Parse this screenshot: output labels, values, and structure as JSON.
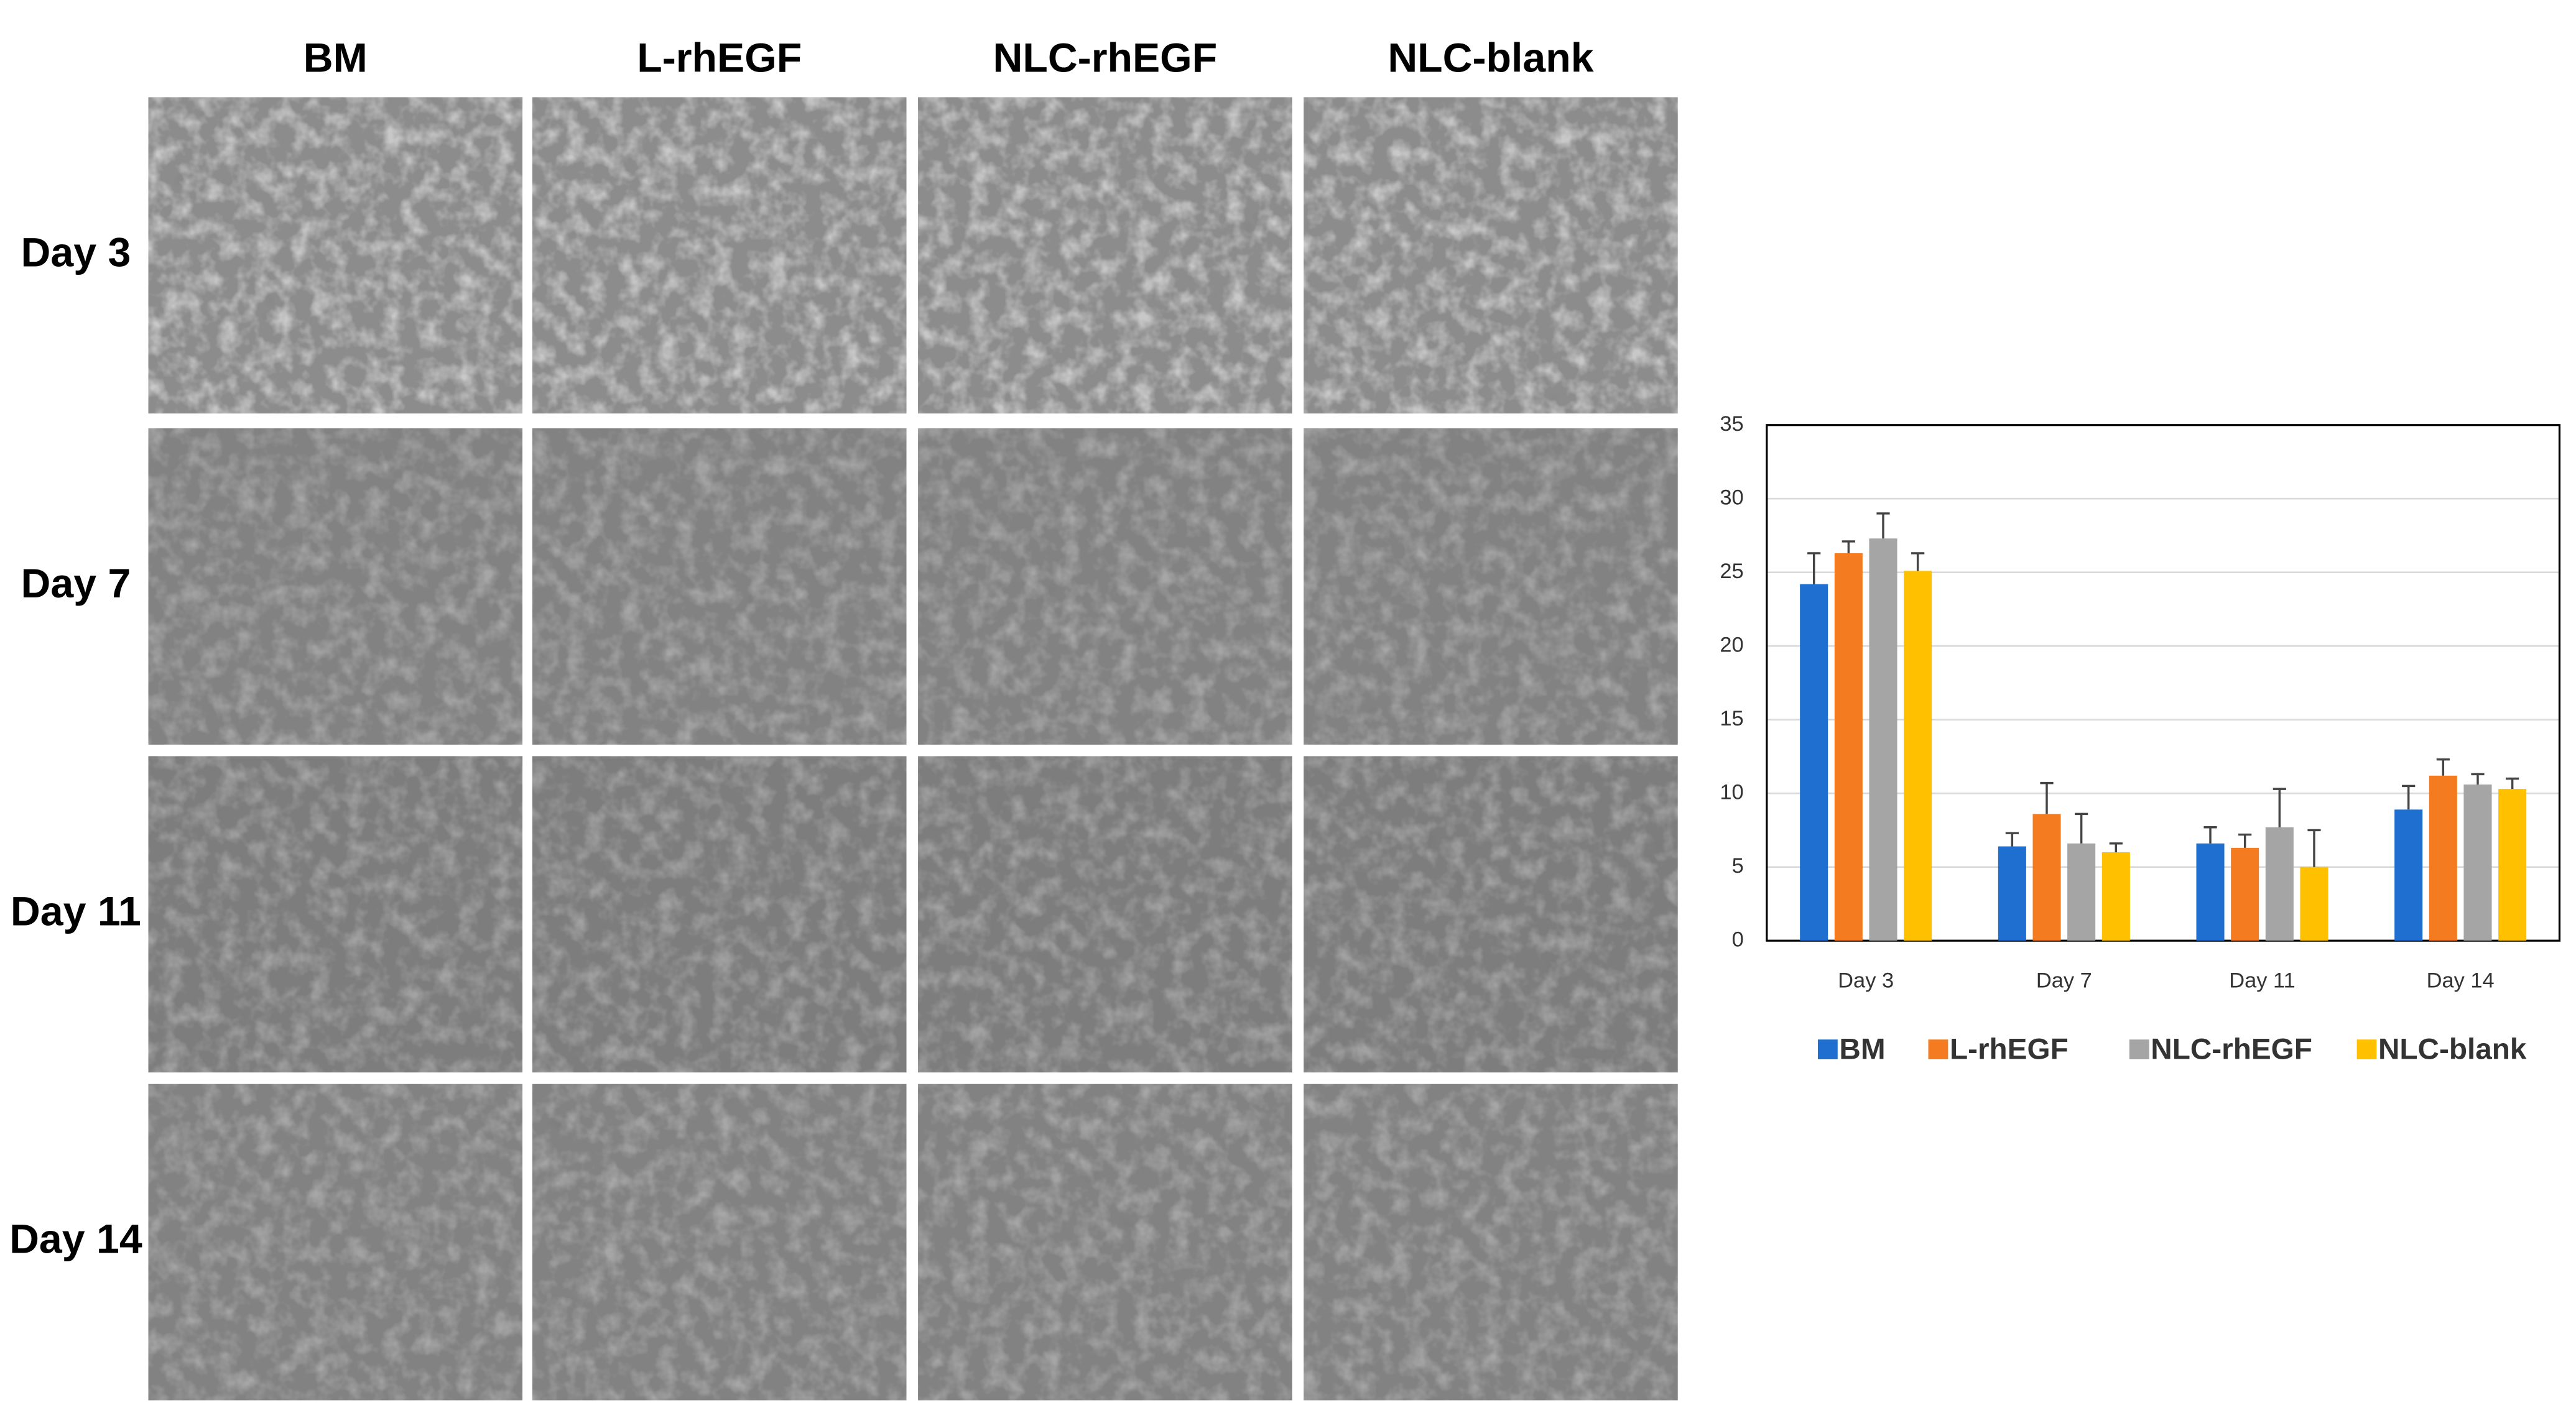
{
  "figure": {
    "columns": [
      "BM",
      "L-rhEGF",
      "NLC-rhEGF",
      "NLC-blank"
    ],
    "rows": [
      "Day 3",
      "Day 7",
      "Day 11",
      "Day 14"
    ]
  },
  "chart_data": {
    "type": "bar",
    "categories": [
      "Day 3",
      "Day 7",
      "Day 11",
      "Day 14"
    ],
    "series": [
      {
        "name": "BM",
        "color": "#1f6fd1",
        "values": [
          24.2,
          6.4,
          6.6,
          8.9
        ],
        "errors": [
          2.1,
          0.9,
          1.1,
          1.6
        ]
      },
      {
        "name": "L-rhEGF",
        "color": "#f47b20",
        "values": [
          26.3,
          8.6,
          6.3,
          11.2
        ],
        "errors": [
          0.8,
          2.1,
          0.9,
          1.1
        ]
      },
      {
        "name": "NLC-rhEGF",
        "color": "#a5a5a5",
        "values": [
          27.3,
          6.6,
          7.7,
          10.6
        ],
        "errors": [
          1.7,
          2.0,
          2.6,
          0.7
        ]
      },
      {
        "name": "NLC-blank",
        "color": "#ffc000",
        "values": [
          25.1,
          6.0,
          5.0,
          10.3
        ],
        "errors": [
          1.2,
          0.6,
          2.5,
          0.7
        ]
      }
    ],
    "ylim": [
      0,
      35
    ],
    "yticks": [
      0,
      5,
      10,
      15,
      20,
      25,
      30,
      35
    ],
    "grid": true,
    "legend": "bottom"
  }
}
